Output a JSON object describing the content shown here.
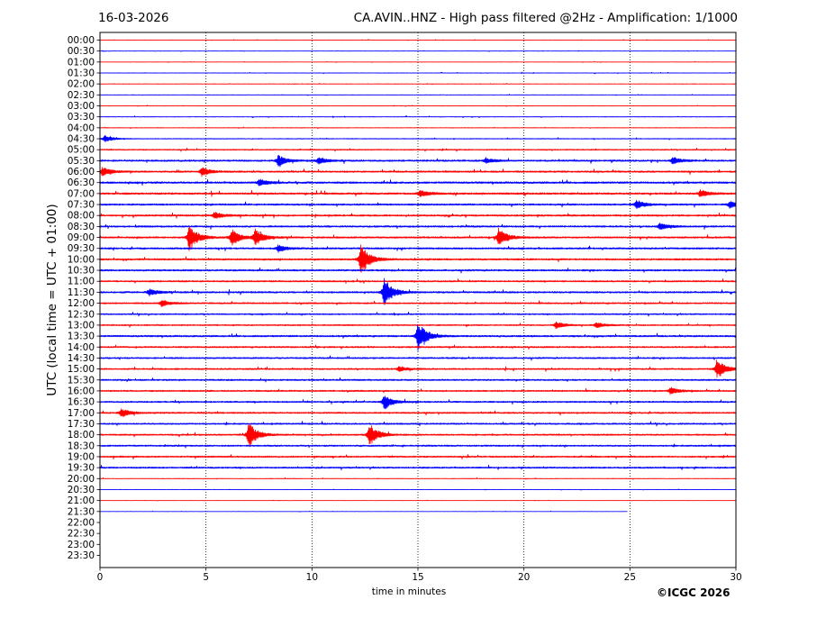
{
  "header": {
    "date": "16-03-2026",
    "title": "CA.AVIN..HNZ - High pass filtered @2Hz - Amplification: 1/1000"
  },
  "copyright": "©ICGC 2026",
  "colors": {
    "red_trace": "#ff0000",
    "blue_trace": "#0000ff",
    "grid": "#000000"
  },
  "chart_data": {
    "type": "line",
    "title": "CA.AVIN..HNZ - High pass filtered @2Hz - Amplification: 1/1000",
    "xlabel": "time in minutes",
    "ylabel": "UTC (local time = UTC + 01:00)",
    "xlim": [
      0,
      30
    ],
    "x_ticks": [
      0,
      5,
      10,
      15,
      20,
      25,
      30
    ],
    "grid": "vertical dotted lines at each x tick",
    "row_labels": [
      "00:00",
      "00:30",
      "01:00",
      "01:30",
      "02:00",
      "02:30",
      "03:00",
      "03:30",
      "04:00",
      "04:30",
      "05:00",
      "05:30",
      "06:00",
      "06:30",
      "07:00",
      "07:30",
      "08:00",
      "08:30",
      "09:00",
      "09:30",
      "10:00",
      "10:30",
      "11:00",
      "11:30",
      "12:00",
      "12:30",
      "13:00",
      "13:30",
      "14:00",
      "14:30",
      "15:00",
      "15:30",
      "16:00",
      "16:30",
      "17:00",
      "17:30",
      "18:00",
      "18:30",
      "19:00",
      "19:30",
      "20:00",
      "20:30",
      "21:00",
      "21:30",
      "22:00",
      "22:30",
      "23:00",
      "23:30"
    ],
    "row_colors": "alternating red (full hour) and blue (half hour)",
    "traces": [
      {
        "row": "00:00",
        "end": 30,
        "noise": 0.2
      },
      {
        "row": "00:30",
        "end": 30,
        "noise": 0.2
      },
      {
        "row": "01:00",
        "end": 30,
        "noise": 0.2
      },
      {
        "row": "01:30",
        "end": 30,
        "noise": 0.25
      },
      {
        "row": "02:00",
        "end": 30,
        "noise": 0.25
      },
      {
        "row": "02:30",
        "end": 30,
        "noise": 0.25
      },
      {
        "row": "03:00",
        "end": 30,
        "noise": 0.25
      },
      {
        "row": "03:30",
        "end": 30,
        "noise": 0.3
      },
      {
        "row": "04:00",
        "end": 30,
        "noise": 0.3
      },
      {
        "row": "04:30",
        "end": 30,
        "noise": 0.4,
        "events": [
          {
            "t": 0.2,
            "amp": 0.4
          }
        ]
      },
      {
        "row": "05:00",
        "end": 30,
        "noise": 0.6
      },
      {
        "row": "05:30",
        "end": 30,
        "noise": 0.9,
        "events": [
          {
            "t": 8.4,
            "amp": 0.6
          },
          {
            "t": 10.3,
            "amp": 0.4
          },
          {
            "t": 18.2,
            "amp": 0.3
          },
          {
            "t": 27.0,
            "amp": 0.4
          }
        ]
      },
      {
        "row": "06:00",
        "end": 30,
        "noise": 0.9,
        "events": [
          {
            "t": 0.1,
            "amp": 0.5
          },
          {
            "t": 4.8,
            "amp": 0.5
          }
        ]
      },
      {
        "row": "06:30",
        "end": 30,
        "noise": 1.0,
        "events": [
          {
            "t": 7.5,
            "amp": 0.4
          }
        ]
      },
      {
        "row": "07:00",
        "end": 30,
        "noise": 1.0,
        "events": [
          {
            "t": 15.1,
            "amp": 0.4
          },
          {
            "t": 28.3,
            "amp": 0.4
          }
        ]
      },
      {
        "row": "07:30",
        "end": 30,
        "noise": 0.9,
        "events": [
          {
            "t": 25.3,
            "amp": 0.5
          },
          {
            "t": 29.7,
            "amp": 0.4
          }
        ]
      },
      {
        "row": "08:00",
        "end": 30,
        "noise": 0.9,
        "events": [
          {
            "t": 5.4,
            "amp": 0.4
          }
        ]
      },
      {
        "row": "08:30",
        "end": 30,
        "noise": 0.9,
        "events": [
          {
            "t": 26.4,
            "amp": 0.4
          }
        ]
      },
      {
        "row": "09:00",
        "end": 30,
        "noise": 0.9,
        "events": [
          {
            "t": 4.2,
            "amp": 1.6
          },
          {
            "t": 6.2,
            "amp": 1.0
          },
          {
            "t": 7.3,
            "amp": 1.0
          },
          {
            "t": 18.8,
            "amp": 1.1
          }
        ]
      },
      {
        "row": "09:30",
        "end": 30,
        "noise": 0.9,
        "events": [
          {
            "t": 8.4,
            "amp": 0.4
          }
        ]
      },
      {
        "row": "10:00",
        "end": 30,
        "noise": 0.9,
        "events": [
          {
            "t": 12.3,
            "amp": 1.9
          }
        ]
      },
      {
        "row": "10:30",
        "end": 30,
        "noise": 0.9
      },
      {
        "row": "11:00",
        "end": 30,
        "noise": 0.8
      },
      {
        "row": "11:30",
        "end": 30,
        "noise": 0.9,
        "events": [
          {
            "t": 2.3,
            "amp": 0.4
          },
          {
            "t": 13.4,
            "amp": 1.7
          }
        ]
      },
      {
        "row": "12:00",
        "end": 30,
        "noise": 0.8,
        "events": [
          {
            "t": 2.9,
            "amp": 0.4
          }
        ]
      },
      {
        "row": "12:30",
        "end": 30,
        "noise": 0.7
      },
      {
        "row": "13:00",
        "end": 30,
        "noise": 0.7,
        "events": [
          {
            "t": 21.5,
            "amp": 0.4
          },
          {
            "t": 23.4,
            "amp": 0.3
          }
        ]
      },
      {
        "row": "13:30",
        "end": 30,
        "noise": 0.9,
        "events": [
          {
            "t": 15.0,
            "amp": 1.8
          }
        ]
      },
      {
        "row": "14:00",
        "end": 30,
        "noise": 0.8
      },
      {
        "row": "14:30",
        "end": 30,
        "noise": 0.8
      },
      {
        "row": "15:00",
        "end": 30,
        "noise": 0.8,
        "events": [
          {
            "t": 14.1,
            "amp": 0.3
          },
          {
            "t": 29.1,
            "amp": 1.2
          }
        ]
      },
      {
        "row": "15:30",
        "end": 30,
        "noise": 0.8
      },
      {
        "row": "16:00",
        "end": 30,
        "noise": 0.8,
        "events": [
          {
            "t": 26.9,
            "amp": 0.4
          }
        ]
      },
      {
        "row": "16:30",
        "end": 30,
        "noise": 0.8,
        "events": [
          {
            "t": 13.4,
            "amp": 0.9
          }
        ]
      },
      {
        "row": "17:00",
        "end": 30,
        "noise": 0.8,
        "events": [
          {
            "t": 1.0,
            "amp": 0.5
          }
        ]
      },
      {
        "row": "17:30",
        "end": 30,
        "noise": 0.8
      },
      {
        "row": "18:00",
        "end": 30,
        "noise": 0.8,
        "events": [
          {
            "t": 7.0,
            "amp": 1.5
          },
          {
            "t": 12.7,
            "amp": 1.3
          }
        ]
      },
      {
        "row": "18:30",
        "end": 30,
        "noise": 0.8
      },
      {
        "row": "19:00",
        "end": 30,
        "noise": 0.8
      },
      {
        "row": "19:30",
        "end": 30,
        "noise": 0.8
      },
      {
        "row": "20:00",
        "end": 30,
        "noise": 0.3
      },
      {
        "row": "20:30",
        "end": 30,
        "noise": 0.2
      },
      {
        "row": "21:00",
        "end": 30,
        "noise": 0.15
      },
      {
        "row": "21:30",
        "end": 24.9,
        "noise": 0.15
      }
    ]
  }
}
